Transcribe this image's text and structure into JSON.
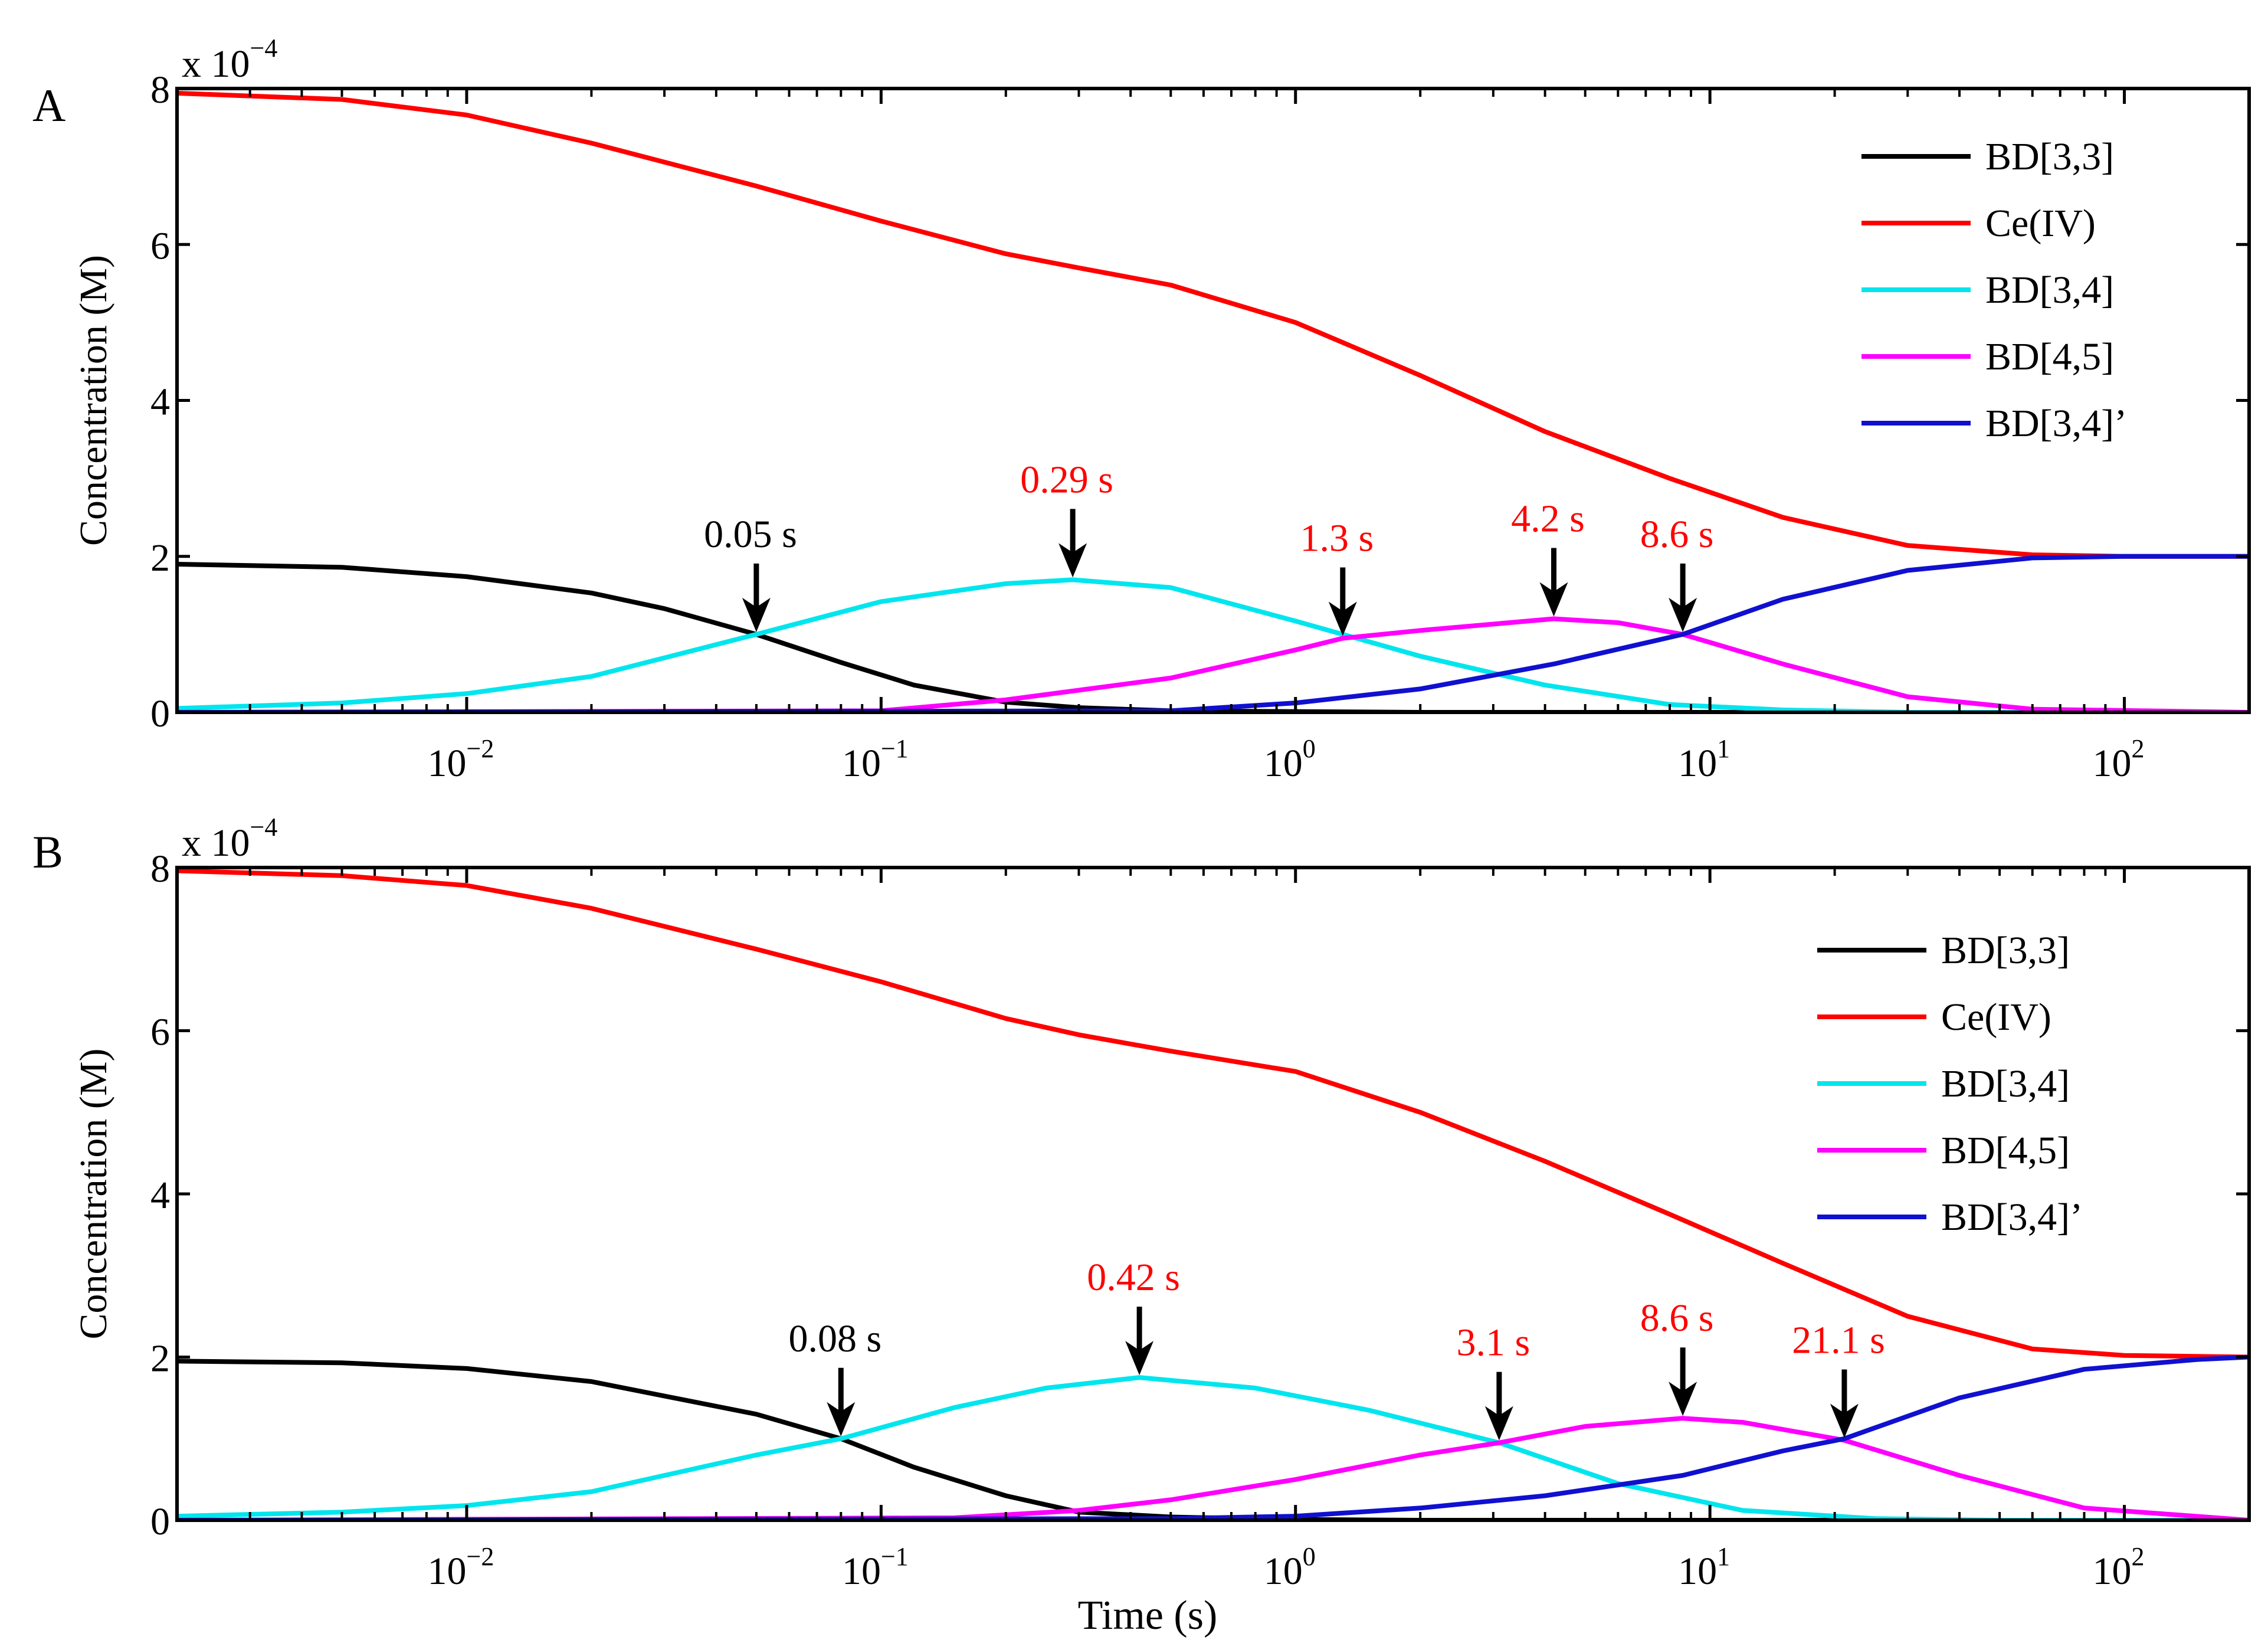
{
  "figure_xlabel": "Time (s)",
  "chart_data": [
    {
      "type": "line",
      "panel_label": "A",
      "ylabel": "Concentration (M)",
      "xlabel": "",
      "x_scale": "log",
      "xlim": [
        0.002,
        200
      ],
      "ylim": [
        0,
        8
      ],
      "y_multiplier_label": "x 10",
      "y_multiplier_exponent": "−4",
      "y_ticks": [
        {
          "value": 0,
          "label": "0"
        },
        {
          "value": 2,
          "label": "2"
        },
        {
          "value": 4,
          "label": "4"
        },
        {
          "value": 6,
          "label": "6"
        },
        {
          "value": 8,
          "label": "8"
        }
      ],
      "x_ticks": [
        {
          "value": 0.01,
          "base": "10",
          "exp": "−2"
        },
        {
          "value": 0.1,
          "base": "10",
          "exp": "−1"
        },
        {
          "value": 1,
          "base": "10",
          "exp": "0"
        },
        {
          "value": 10,
          "base": "10",
          "exp": "1"
        },
        {
          "value": 100,
          "base": "10",
          "exp": "2"
        }
      ],
      "legend_position": "top-right",
      "series": [
        {
          "name": "BD[3,3]",
          "color": "#000000",
          "x": [
            0.002,
            0.005,
            0.01,
            0.02,
            0.03,
            0.05,
            0.08,
            0.12,
            0.2,
            0.3,
            0.5,
            1,
            2,
            10,
            200
          ],
          "y": [
            1.9,
            1.86,
            1.74,
            1.53,
            1.33,
            1.0,
            0.64,
            0.35,
            0.13,
            0.06,
            0.02,
            0.01,
            0.0,
            0.0,
            0.0
          ]
        },
        {
          "name": "Ce(IV)",
          "color": "#ff0000",
          "x": [
            0.002,
            0.005,
            0.01,
            0.02,
            0.05,
            0.1,
            0.2,
            0.3,
            0.5,
            1,
            2,
            4,
            8,
            15,
            30,
            60,
            100,
            200
          ],
          "y": [
            7.94,
            7.86,
            7.66,
            7.3,
            6.75,
            6.3,
            5.88,
            5.7,
            5.48,
            5.0,
            4.32,
            3.6,
            3.0,
            2.5,
            2.14,
            2.02,
            2.0,
            2.0
          ]
        },
        {
          "name": "BD[3,4]",
          "color": "#00e5ee",
          "x": [
            0.002,
            0.005,
            0.01,
            0.02,
            0.05,
            0.1,
            0.2,
            0.29,
            0.5,
            1,
            1.3,
            2,
            4,
            8,
            15,
            30,
            200
          ],
          "y": [
            0.05,
            0.12,
            0.24,
            0.46,
            1.0,
            1.42,
            1.65,
            1.7,
            1.6,
            1.17,
            1.0,
            0.72,
            0.35,
            0.1,
            0.03,
            0.0,
            0.0
          ]
        },
        {
          "name": "BD[4,5]",
          "color": "#ff00ff",
          "x": [
            0.002,
            0.1,
            0.2,
            0.5,
            1,
            1.3,
            2,
            4.2,
            6,
            8.6,
            15,
            30,
            60,
            200
          ],
          "y": [
            0.0,
            0.02,
            0.16,
            0.44,
            0.8,
            0.95,
            1.05,
            1.2,
            1.15,
            1.0,
            0.62,
            0.2,
            0.04,
            0.0
          ]
        },
        {
          "name": "BD[3,4]’",
          "color": "#1010d0",
          "x": [
            0.002,
            0.5,
            1,
            2,
            4.2,
            8.6,
            15,
            30,
            60,
            100,
            200
          ],
          "y": [
            0.0,
            0.02,
            0.12,
            0.3,
            0.62,
            1.0,
            1.45,
            1.82,
            1.98,
            2.0,
            2.0
          ]
        }
      ],
      "annotations": [
        {
          "text": "0.05 s",
          "x": 0.05,
          "y": 1.0,
          "color": "#000000"
        },
        {
          "text": "0.29 s",
          "x": 0.29,
          "y": 1.7,
          "color": "#ff0000"
        },
        {
          "text": "1.3 s",
          "x": 1.3,
          "y": 0.95,
          "color": "#ff0000"
        },
        {
          "text": "4.2 s",
          "x": 4.2,
          "y": 1.2,
          "color": "#ff0000"
        },
        {
          "text": "8.6 s",
          "x": 8.6,
          "y": 1.0,
          "color": "#ff0000"
        }
      ]
    },
    {
      "type": "line",
      "panel_label": "B",
      "ylabel": "Concentration (M)",
      "xlabel": "Time (s)",
      "x_scale": "log",
      "xlim": [
        0.002,
        200
      ],
      "ylim": [
        0,
        8
      ],
      "y_multiplier_label": "x 10",
      "y_multiplier_exponent": "−4",
      "y_ticks": [
        {
          "value": 0,
          "label": "0"
        },
        {
          "value": 2,
          "label": "2"
        },
        {
          "value": 4,
          "label": "4"
        },
        {
          "value": 6,
          "label": "6"
        },
        {
          "value": 8,
          "label": "8"
        }
      ],
      "x_ticks": [
        {
          "value": 0.01,
          "base": "10",
          "exp": "−2"
        },
        {
          "value": 0.1,
          "base": "10",
          "exp": "−1"
        },
        {
          "value": 1,
          "base": "10",
          "exp": "0"
        },
        {
          "value": 10,
          "base": "10",
          "exp": "1"
        },
        {
          "value": 100,
          "base": "10",
          "exp": "2"
        }
      ],
      "legend_position": "top-right",
      "series": [
        {
          "name": "BD[3,3]",
          "color": "#000000",
          "x": [
            0.002,
            0.005,
            0.01,
            0.02,
            0.05,
            0.08,
            0.12,
            0.2,
            0.3,
            0.5,
            1,
            2,
            200
          ],
          "y": [
            1.95,
            1.93,
            1.86,
            1.7,
            1.3,
            1.0,
            0.65,
            0.3,
            0.1,
            0.04,
            0.01,
            0.0,
            0.0
          ]
        },
        {
          "name": "Ce(IV)",
          "color": "#ff0000",
          "x": [
            0.002,
            0.005,
            0.01,
            0.02,
            0.05,
            0.1,
            0.2,
            0.3,
            0.5,
            1,
            2,
            4,
            8,
            15,
            30,
            60,
            100,
            200
          ],
          "y": [
            7.96,
            7.9,
            7.78,
            7.5,
            7.0,
            6.6,
            6.15,
            5.95,
            5.75,
            5.5,
            5.0,
            4.4,
            3.75,
            3.15,
            2.5,
            2.1,
            2.02,
            2.0
          ]
        },
        {
          "name": "BD[3,4]",
          "color": "#00e5ee",
          "x": [
            0.002,
            0.005,
            0.01,
            0.02,
            0.05,
            0.08,
            0.15,
            0.25,
            0.42,
            0.8,
            1.5,
            3.1,
            6,
            12,
            25,
            50,
            200
          ],
          "y": [
            0.05,
            0.1,
            0.18,
            0.35,
            0.8,
            1.0,
            1.38,
            1.62,
            1.75,
            1.62,
            1.35,
            0.95,
            0.45,
            0.12,
            0.02,
            0.0,
            0.0
          ]
        },
        {
          "name": "BD[4,5]",
          "color": "#ff00ff",
          "x": [
            0.002,
            0.15,
            0.3,
            0.5,
            1,
            2,
            3.1,
            5,
            8.6,
            12,
            21.1,
            40,
            80,
            200
          ],
          "y": [
            0.0,
            0.03,
            0.12,
            0.25,
            0.5,
            0.8,
            0.95,
            1.15,
            1.25,
            1.2,
            0.98,
            0.55,
            0.15,
            0.0
          ]
        },
        {
          "name": "BD[3,4]’",
          "color": "#1010d0",
          "x": [
            0.002,
            0.5,
            1,
            2,
            4,
            8.6,
            15,
            21.1,
            40,
            80,
            150,
            200
          ],
          "y": [
            0.0,
            0.02,
            0.05,
            0.15,
            0.3,
            0.55,
            0.85,
            1.0,
            1.5,
            1.85,
            1.97,
            2.0
          ]
        }
      ],
      "annotations": [
        {
          "text": "0.08 s",
          "x": 0.08,
          "y": 1.0,
          "color": "#000000"
        },
        {
          "text": "0.42 s",
          "x": 0.42,
          "y": 1.75,
          "color": "#ff0000"
        },
        {
          "text": "3.1 s",
          "x": 3.1,
          "y": 0.95,
          "color": "#ff0000"
        },
        {
          "text": "8.6 s",
          "x": 8.6,
          "y": 1.25,
          "color": "#ff0000"
        },
        {
          "text": "21.1 s",
          "x": 21.1,
          "y": 0.98,
          "color": "#ff0000"
        }
      ]
    }
  ]
}
